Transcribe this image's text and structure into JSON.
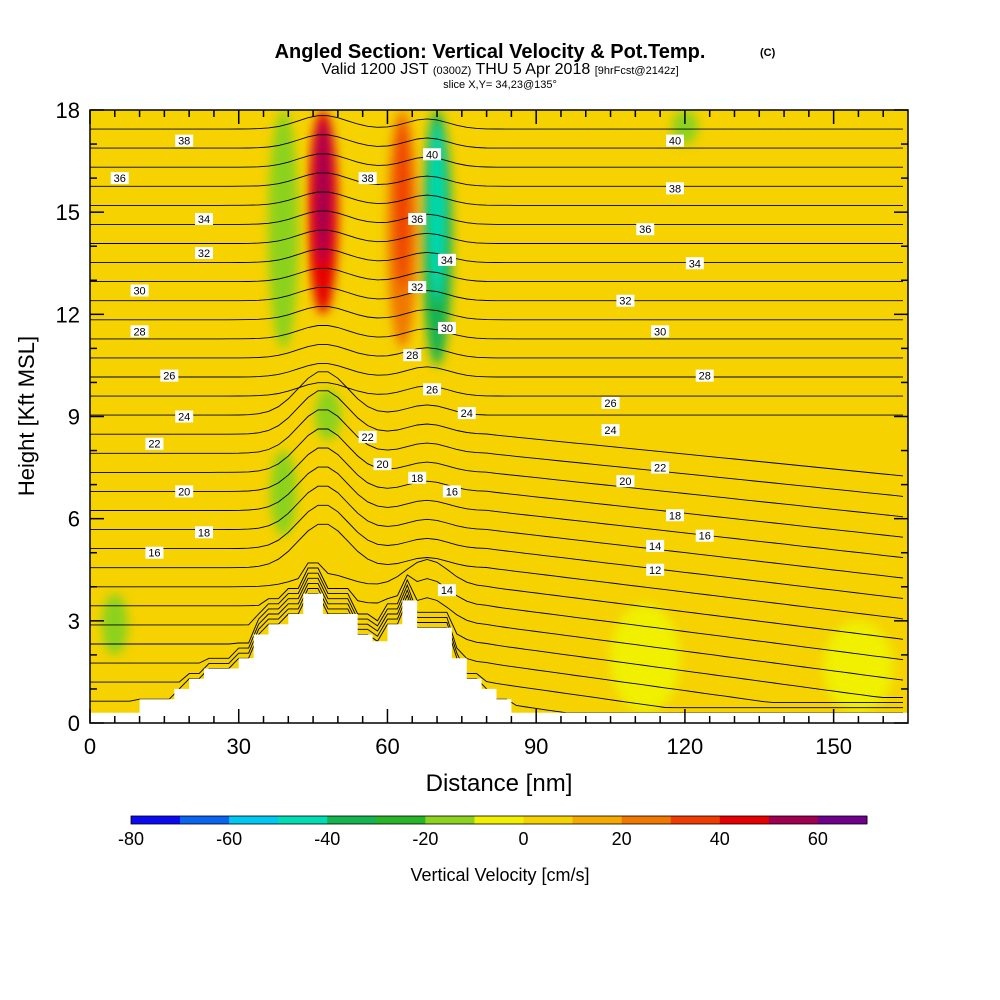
{
  "header": {
    "title": "Angled Section: Vertical Velocity & Pot.Temp.",
    "title_unit": "(C)",
    "valid_prefix": "Valid 1200 JST",
    "valid_utc": "(0300Z)",
    "valid_date": "THU 5 Apr 2018",
    "forecast": "[9hrFcst@2142z]",
    "slice": "slice X,Y= 34,23@135°"
  },
  "chart_data": {
    "type": "heatmap",
    "title": "Angled Section: Vertical Velocity & Pot.Temp.",
    "xlabel": "Distance [nm]",
    "ylabel": "Height [Kft MSL]",
    "xlim": [
      0,
      165
    ],
    "ylim": [
      0,
      18
    ],
    "x_ticks": [
      0,
      30,
      60,
      90,
      120,
      150
    ],
    "y_ticks": [
      0,
      3,
      6,
      9,
      12,
      15,
      18
    ],
    "colorbar": {
      "label": "Vertical Velocity [cm/s]",
      "tick_values": [
        -80,
        -60,
        -40,
        -20,
        0,
        20,
        40,
        60
      ],
      "range": [
        -80,
        70
      ],
      "colors": [
        "#0a0af0",
        "#0a64f0",
        "#00c8f0",
        "#00dcb4",
        "#14b450",
        "#28b428",
        "#8cd21e",
        "#f0f000",
        "#f5d200",
        "#f5aa00",
        "#f07800",
        "#f03c00",
        "#e60000",
        "#a00050",
        "#6e008c"
      ]
    },
    "vertical_velocity_features": [
      {
        "x": 47,
        "y_range": [
          12,
          18
        ],
        "value": 40,
        "kind": "updraft-core"
      },
      {
        "x": 63,
        "y_range": [
          11,
          18
        ],
        "value": 25,
        "kind": "updraft"
      },
      {
        "x": 39,
        "y_range": [
          11,
          18
        ],
        "value": -20,
        "kind": "downdraft"
      },
      {
        "x": 70,
        "y_range": [
          10.5,
          18
        ],
        "value": -40,
        "kind": "downdraft-core"
      },
      {
        "x": 48,
        "y_range": [
          8.3,
          9.8
        ],
        "value": -15,
        "kind": "downdraft"
      },
      {
        "x": 39,
        "y_range": [
          5.5,
          8
        ],
        "value": -15,
        "kind": "downdraft"
      },
      {
        "x": 5,
        "y_range": [
          2,
          3.8
        ],
        "value": -15,
        "kind": "downdraft"
      },
      {
        "x": 120,
        "y_range": [
          17,
          18
        ],
        "value": -15,
        "kind": "downdraft"
      },
      {
        "x": 112,
        "y_range": [
          0.3,
          3.5
        ],
        "value": -5,
        "kind": "weak-sinking"
      },
      {
        "x": 155,
        "y_range": [
          0.3,
          3
        ],
        "value": -5,
        "kind": "weak-sinking"
      }
    ],
    "terrain": {
      "x": [
        0,
        10,
        10,
        17,
        17,
        20,
        20,
        23,
        23,
        30,
        30,
        33,
        33,
        36,
        36,
        40,
        40,
        43,
        43,
        47,
        47,
        54,
        54,
        57,
        57,
        60,
        60,
        63,
        63,
        66,
        66,
        73,
        73,
        76,
        76,
        79,
        79,
        82,
        82,
        85,
        85,
        90,
        90,
        165
      ],
      "y": [
        0.3,
        0.3,
        0.7,
        0.7,
        1.0,
        1.0,
        1.3,
        1.3,
        1.6,
        1.6,
        1.9,
        1.9,
        2.6,
        2.6,
        2.9,
        2.9,
        3.2,
        3.2,
        3.8,
        3.8,
        3.2,
        3.2,
        2.6,
        2.6,
        2.4,
        2.4,
        2.9,
        2.9,
        3.6,
        3.6,
        2.8,
        2.8,
        1.9,
        1.9,
        1.3,
        1.3,
        1.0,
        1.0,
        0.7,
        0.7,
        0.3,
        0.3,
        0.3,
        0.3
      ]
    },
    "theta_contours": [
      {
        "value": 12,
        "label_x": 114,
        "label_y": 4.5
      },
      {
        "value": 14,
        "label_x": 72,
        "label_y": 3.9,
        "label2_x": 114,
        "label2_y": 5.2
      },
      {
        "value": 16,
        "label_x": 13,
        "label_y": 5.0,
        "label2_x": 73,
        "label2_y": 6.8,
        "label3_x": 124,
        "label3_y": 5.5
      },
      {
        "value": 18,
        "label_x": 23,
        "label_y": 5.6,
        "label2_x": 66,
        "label2_y": 7.2,
        "label3_x": 118,
        "label3_y": 6.1
      },
      {
        "value": 20,
        "label_x": 19,
        "label_y": 6.8,
        "label2_x": 59,
        "label2_y": 7.6,
        "label3_x": 108,
        "label3_y": 7.1
      },
      {
        "value": 22,
        "label_x": 13,
        "label_y": 8.2,
        "label2_x": 56,
        "label2_y": 8.4,
        "label3_x": 115,
        "label3_y": 7.5
      },
      {
        "value": 24,
        "label_x": 19,
        "label_y": 9.0,
        "label2_x": 76,
        "label2_y": 9.1,
        "label3_x": 105,
        "label3_y": 8.6
      },
      {
        "value": 26,
        "label_x": 16,
        "label_y": 10.2,
        "label2_x": 69,
        "label2_y": 9.8,
        "label3_x": 105,
        "label3_y": 9.4
      },
      {
        "value": 28,
        "label_x": 10,
        "label_y": 11.5,
        "label2_x": 65,
        "label2_y": 10.8,
        "label3_x": 124,
        "label3_y": 10.2
      },
      {
        "value": 30,
        "label_x": 10,
        "label_y": 12.7,
        "label2_x": 72,
        "label2_y": 11.6,
        "label3_x": 115,
        "label3_y": 11.5
      },
      {
        "value": 32,
        "label_x": 23,
        "label_y": 13.8,
        "label2_x": 66,
        "label2_y": 12.8,
        "label3_x": 108,
        "label3_y": 12.4
      },
      {
        "value": 34,
        "label_x": 23,
        "label_y": 14.8,
        "label2_x": 72,
        "label2_y": 13.6,
        "label3_x": 122,
        "label3_y": 13.5
      },
      {
        "value": 36,
        "label_x": 6,
        "label_y": 16.0,
        "label2_x": 66,
        "label2_y": 14.8,
        "label3_x": 112,
        "label3_y": 14.5
      },
      {
        "value": 38,
        "label_x": 19,
        "label_y": 17.1,
        "label2_x": 56,
        "label2_y": 16.0,
        "label3_x": 118,
        "label3_y": 15.7
      },
      {
        "value": 40,
        "label_x": 69,
        "label_y": 16.7,
        "label2_x": 118,
        "label2_y": 17.1
      }
    ]
  }
}
